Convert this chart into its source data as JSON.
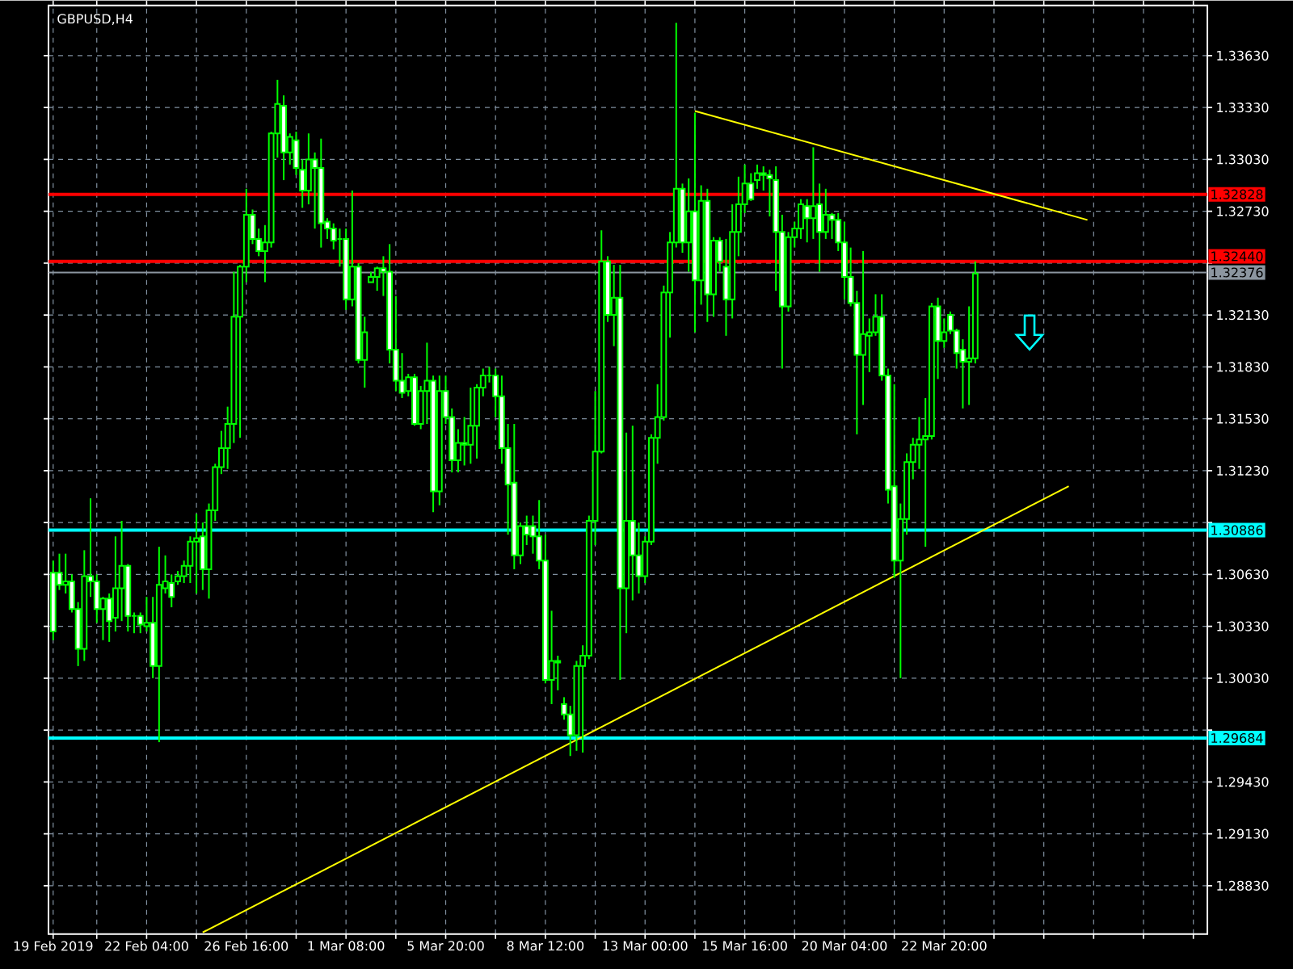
{
  "chart_data": {
    "type": "candlestick",
    "title": "GBPUSD,H4",
    "color": "#00ff00",
    "grid": true,
    "ylim": [
      1.2855,
      1.3392
    ],
    "yticks": [
      {
        "value": 1.3363,
        "label": "1.33630"
      },
      {
        "value": 1.3333,
        "label": "1.33330"
      },
      {
        "value": 1.3303,
        "label": "1.33030"
      },
      {
        "value": 1.3273,
        "label": "1.32730"
      },
      {
        "value": 1.3213,
        "label": "1.32130"
      },
      {
        "value": 1.3183,
        "label": "1.31830"
      },
      {
        "value": 1.3153,
        "label": "1.31530"
      },
      {
        "value": 1.3123,
        "label": "1.31230"
      },
      {
        "value": 1.3063,
        "label": "1.30630"
      },
      {
        "value": 1.3033,
        "label": "1.30330"
      },
      {
        "value": 1.3003,
        "label": "1.30030"
      },
      {
        "value": 1.2943,
        "label": "1.29430"
      },
      {
        "value": 1.2913,
        "label": "1.29130"
      },
      {
        "value": 1.2883,
        "label": "1.28830"
      }
    ],
    "ref_lines": [
      {
        "axis": "y",
        "value": 1.32828,
        "label": "1.32828",
        "color": "#ff0000"
      },
      {
        "axis": "y",
        "value": 1.3244,
        "label": "1.32440",
        "color": "#ff0000"
      },
      {
        "axis": "y",
        "value": 1.32376,
        "label": "1.32376",
        "color": "#8c96a0"
      },
      {
        "axis": "y",
        "value": 1.30886,
        "label": "1.30886",
        "color": "#00ffff"
      },
      {
        "axis": "y",
        "value": 1.29684,
        "label": "1.29684",
        "color": "#00ffff"
      }
    ],
    "series": [
      {
        "type": "line",
        "color": "#ffff00",
        "values": [
          null,
          null,
          null,
          null,
          null,
          null,
          null,
          null,
          null,
          null,
          null,
          null,
          null,
          null,
          null,
          null,
          null,
          null,
          null,
          null,
          null,
          null,
          null,
          null,
          1.2856,
          null,
          null,
          null,
          null,
          null,
          null,
          null,
          null,
          null,
          null,
          null,
          null,
          null,
          null,
          null,
          null,
          null,
          null,
          null,
          null,
          null,
          null,
          null,
          null,
          null,
          null,
          null,
          null,
          null,
          null,
          null,
          null,
          null,
          null,
          null,
          null,
          null,
          null,
          null,
          null,
          null,
          null,
          null,
          null,
          null,
          null,
          null,
          null,
          null,
          null,
          null,
          null,
          null,
          null,
          null,
          null,
          null,
          null,
          null,
          null,
          null,
          null,
          null,
          null,
          null,
          null,
          null,
          null,
          null,
          null,
          null,
          null,
          null,
          null,
          null,
          null,
          null,
          null,
          null,
          null,
          null,
          null,
          null,
          null,
          null,
          null,
          null,
          null,
          null,
          null,
          null,
          null,
          null,
          null,
          null,
          null,
          null,
          null,
          null,
          null,
          null,
          null,
          null,
          null,
          null,
          null,
          null,
          null,
          null,
          null,
          null,
          null,
          null,
          null,
          null,
          null,
          null,
          null,
          null,
          null,
          null,
          null,
          null,
          null,
          null,
          null,
          null,
          null,
          null,
          null,
          null,
          null,
          null,
          null,
          null,
          null,
          null,
          null,
          1.3114,
          null,
          null,
          null,
          null,
          null,
          null,
          null,
          null,
          null,
          null,
          null,
          null,
          null,
          null,
          null,
          null,
          null,
          null,
          null,
          null,
          null,
          null
        ]
      },
      {
        "type": "line",
        "color": "#ffff00",
        "values": [
          null,
          null,
          null,
          null,
          null,
          null,
          null,
          null,
          null,
          null,
          null,
          null,
          null,
          null,
          null,
          null,
          null,
          null,
          null,
          null,
          null,
          null,
          null,
          null,
          null,
          null,
          null,
          null,
          null,
          null,
          null,
          null,
          null,
          null,
          null,
          null,
          null,
          null,
          null,
          null,
          null,
          null,
          null,
          null,
          null,
          null,
          null,
          null,
          null,
          null,
          null,
          null,
          null,
          null,
          null,
          null,
          null,
          null,
          null,
          null,
          null,
          null,
          null,
          null,
          null,
          null,
          null,
          null,
          null,
          null,
          null,
          null,
          null,
          null,
          null,
          null,
          null,
          null,
          null,
          null,
          null,
          null,
          null,
          null,
          null,
          null,
          null,
          null,
          null,
          null,
          null,
          null,
          null,
          null,
          null,
          null,
          null,
          null,
          null,
          null,
          null,
          null,
          null,
          1.3331,
          null,
          null,
          null,
          null,
          null,
          null,
          null,
          null,
          null,
          null,
          null,
          null,
          null,
          null,
          null,
          null,
          null,
          null,
          null,
          null,
          null,
          null,
          null,
          null,
          null,
          null,
          null,
          null,
          null,
          null,
          null,
          null,
          null,
          null,
          null,
          null,
          null,
          null,
          null,
          null,
          null,
          null,
          null,
          null,
          null,
          null,
          null,
          null,
          null,
          null,
          null,
          null,
          null,
          null,
          null,
          null,
          null,
          null,
          null,
          null,
          null,
          null,
          1.3268,
          null,
          null,
          null,
          null,
          null,
          null,
          null,
          null,
          null,
          null,
          null,
          null,
          null,
          null,
          null,
          null,
          null,
          null,
          null
        ]
      }
    ],
    "categories": [
      "19 Feb 2019",
      null,
      null,
      null,
      null,
      null,
      null,
      null,
      null,
      null,
      null,
      null,
      null,
      null,
      null,
      "22 Feb 04:00",
      null,
      null,
      null,
      null,
      null,
      null,
      null,
      null,
      null,
      null,
      null,
      null,
      null,
      null,
      null,
      "26 Feb 16:00",
      null,
      null,
      null,
      null,
      null,
      null,
      null,
      null,
      null,
      null,
      null,
      null,
      null,
      null,
      null,
      "1 Mar 08:00",
      null,
      null,
      null,
      null,
      null,
      null,
      null,
      null,
      null,
      null,
      null,
      null,
      null,
      null,
      null,
      "5 Mar 20:00",
      null,
      null,
      null,
      null,
      null,
      null,
      null,
      null,
      null,
      null,
      null,
      null,
      null,
      null,
      null,
      "8 Mar 12:00",
      null,
      null,
      null,
      null,
      null,
      null,
      null,
      null,
      null,
      null,
      null,
      null,
      null,
      null,
      null,
      "13 Mar 00:00",
      null,
      null,
      null,
      null,
      null,
      null,
      null,
      null,
      null,
      null,
      null,
      null,
      null,
      null,
      null,
      "15 Mar 16:00",
      null,
      null,
      null,
      null,
      null,
      null,
      null,
      null,
      null,
      null,
      null,
      null,
      null,
      null,
      null,
      "20 Mar 04:00",
      null,
      null,
      null,
      null,
      null,
      null,
      null,
      null,
      null,
      null,
      null,
      null,
      null,
      null,
      null,
      "22 Mar 20:00",
      null,
      null,
      null,
      null,
      null,
      null,
      null,
      null,
      null,
      null,
      null,
      null,
      null,
      null,
      null,
      null,
      null,
      null,
      null,
      null,
      null,
      null,
      null,
      null,
      null,
      null,
      null,
      null,
      null,
      null,
      null,
      null,
      null,
      null,
      null,
      null,
      null,
      null,
      null,
      null,
      null,
      null
    ],
    "ohlc": [
      [
        1.3064,
        1.3071,
        1.3025,
        1.303
      ],
      [
        1.3064,
        1.3075,
        1.3054,
        1.3057
      ],
      [
        1.3057,
        1.3075,
        1.3052,
        1.3059
      ],
      [
        1.3059,
        1.3063,
        1.3041,
        1.3043
      ],
      [
        1.3043,
        1.3047,
        1.301,
        1.302
      ],
      [
        1.302,
        1.3077,
        1.3013,
        1.3062
      ],
      [
        1.3062,
        1.3107,
        1.305,
        1.3059
      ],
      [
        1.3059,
        1.3063,
        1.3035,
        1.3043
      ],
      [
        1.3043,
        1.305,
        1.3025,
        1.3049
      ],
      [
        1.3049,
        1.3052,
        1.3024,
        1.3036
      ],
      [
        1.3038,
        1.3085,
        1.303,
        1.3055
      ],
      [
        1.3055,
        1.3094,
        1.3036,
        1.3068
      ],
      [
        1.3068,
        1.3069,
        1.303,
        1.3039
      ],
      [
        1.3039,
        1.3041,
        1.3029,
        1.3039
      ],
      [
        1.3039,
        1.3041,
        1.3029,
        1.3034
      ],
      [
        1.3033,
        1.305,
        1.303,
        1.3035
      ],
      [
        1.3035,
        1.305,
        1.3003,
        1.301
      ],
      [
        1.301,
        1.3079,
        1.2966,
        1.3057
      ],
      [
        1.3055,
        1.3074,
        1.3052,
        1.3059
      ],
      [
        1.3058,
        1.3063,
        1.3044,
        1.305
      ],
      [
        1.3059,
        1.3065,
        1.3057,
        1.3062
      ],
      [
        1.3062,
        1.3071,
        1.3058,
        1.3068
      ],
      [
        1.3068,
        1.3085,
        1.3058,
        1.3082
      ],
      [
        1.3082,
        1.3098,
        1.3052,
        1.3084
      ],
      [
        1.3085,
        1.3093,
        1.3054,
        1.3066
      ],
      [
        1.3066,
        1.3104,
        1.3049,
        1.31
      ],
      [
        1.31,
        1.3127,
        1.3094,
        1.3125
      ],
      [
        1.3125,
        1.3146,
        1.3121,
        1.3136
      ],
      [
        1.3136,
        1.316,
        1.3124,
        1.315
      ],
      [
        1.315,
        1.3238,
        1.3139,
        1.3212
      ],
      [
        1.3212,
        1.3242,
        1.3142,
        1.3241
      ],
      [
        1.3241,
        1.3286,
        1.3232,
        1.3271
      ],
      [
        1.3271,
        1.3274,
        1.3254,
        1.3257
      ],
      [
        1.3257,
        1.3263,
        1.3247,
        1.325
      ],
      [
        1.325,
        1.3265,
        1.3232,
        1.3255
      ],
      [
        1.3255,
        1.3319,
        1.3252,
        1.3318
      ],
      [
        1.3318,
        1.3349,
        1.3304,
        1.3335
      ],
      [
        1.3334,
        1.334,
        1.3291,
        1.3307
      ],
      [
        1.3307,
        1.3318,
        1.33,
        1.3316
      ],
      [
        1.3314,
        1.3319,
        1.3294,
        1.3298
      ],
      [
        1.3297,
        1.3303,
        1.3275,
        1.3285
      ],
      [
        1.3285,
        1.3318,
        1.3277,
        1.3303
      ],
      [
        1.3303,
        1.3307,
        1.3263,
        1.3298
      ],
      [
        1.3298,
        1.3315,
        1.3252,
        1.3266
      ],
      [
        1.3267,
        1.3269,
        1.3257,
        1.3263
      ],
      [
        1.3263,
        1.3266,
        1.3251,
        1.3256
      ],
      [
        1.3257,
        1.3263,
        1.3241,
        1.3257
      ],
      [
        1.3257,
        1.3263,
        1.3216,
        1.3222
      ],
      [
        1.3222,
        1.3285,
        1.3218,
        1.3241
      ],
      [
        1.3241,
        1.3243,
        1.3185,
        1.3187
      ],
      [
        1.3187,
        1.3212,
        1.3171,
        1.3203
      ],
      [
        1.3232,
        1.3238,
        1.3232,
        1.3235
      ],
      [
        1.3235,
        1.3241,
        1.3227,
        1.324
      ],
      [
        1.324,
        1.3247,
        1.3224,
        1.3238
      ],
      [
        1.3238,
        1.3254,
        1.3185,
        1.3193
      ],
      [
        1.3193,
        1.3224,
        1.3169,
        1.3175
      ],
      [
        1.3175,
        1.3191,
        1.3165,
        1.3168
      ],
      [
        1.3169,
        1.3179,
        1.3166,
        1.3177
      ],
      [
        1.3177,
        1.3179,
        1.3149,
        1.315
      ],
      [
        1.315,
        1.3172,
        1.3147,
        1.3169
      ],
      [
        1.3169,
        1.3197,
        1.315,
        1.3175
      ],
      [
        1.3175,
        1.3178,
        1.3099,
        1.3111
      ],
      [
        1.3111,
        1.3178,
        1.3103,
        1.3169
      ],
      [
        1.3169,
        1.3178,
        1.315,
        1.3154
      ],
      [
        1.3154,
        1.3159,
        1.3122,
        1.3129
      ],
      [
        1.3129,
        1.3147,
        1.3122,
        1.3139
      ],
      [
        1.3139,
        1.3154,
        1.3126,
        1.3138
      ],
      [
        1.3138,
        1.3171,
        1.3127,
        1.3149
      ],
      [
        1.3149,
        1.3173,
        1.313,
        1.3171
      ],
      [
        1.3171,
        1.3182,
        1.3166,
        1.3178
      ],
      [
        1.3178,
        1.3183,
        1.3174,
        1.3178
      ],
      [
        1.3178,
        1.3182,
        1.3154,
        1.3166
      ],
      [
        1.3166,
        1.3178,
        1.3127,
        1.3136
      ],
      [
        1.3136,
        1.315,
        1.3086,
        1.3115
      ],
      [
        1.3116,
        1.315,
        1.3066,
        1.3074
      ],
      [
        1.3074,
        1.3093,
        1.3069,
        1.3091
      ],
      [
        1.3091,
        1.3097,
        1.308,
        1.3086
      ],
      [
        1.3091,
        1.3097,
        1.3075,
        1.3085
      ],
      [
        1.3085,
        1.3106,
        1.3066,
        1.3071
      ],
      [
        1.3071,
        1.3086,
        1.3,
        1.3002
      ],
      [
        1.3002,
        1.3042,
        1.2988,
        1.3013
      ],
      [
        1.3013,
        1.3016,
        1.2996,
        1.3012
      ],
      [
        1.2988,
        1.2992,
        1.2979,
        1.2982
      ],
      [
        1.2982,
        1.2987,
        1.2958,
        1.297
      ],
      [
        1.297,
        1.3013,
        1.2961,
        1.301
      ],
      [
        1.301,
        1.3022,
        1.296,
        1.3016
      ],
      [
        1.3016,
        1.3097,
        1.3014,
        1.3094
      ],
      [
        1.3094,
        1.3169,
        1.308,
        1.3134
      ],
      [
        1.3134,
        1.3262,
        1.3133,
        1.3244
      ],
      [
        1.3244,
        1.3247,
        1.3209,
        1.3213
      ],
      [
        1.3213,
        1.3242,
        1.3195,
        1.3223
      ],
      [
        1.3223,
        1.3242,
        1.3002,
        1.3055
      ],
      [
        1.3055,
        1.3145,
        1.3029,
        1.3094
      ],
      [
        1.3094,
        1.3149,
        1.3048,
        1.3074
      ],
      [
        1.3074,
        1.3093,
        1.3052,
        1.3062
      ],
      [
        1.3062,
        1.3085,
        1.3058,
        1.3082
      ],
      [
        1.3082,
        1.3144,
        1.308,
        1.3142
      ],
      [
        1.3142,
        1.3173,
        1.3127,
        1.3154
      ],
      [
        1.3154,
        1.323,
        1.3152,
        1.3226
      ],
      [
        1.3226,
        1.3261,
        1.32,
        1.3255
      ],
      [
        1.3255,
        1.3382,
        1.3252,
        1.3286
      ],
      [
        1.3286,
        1.3289,
        1.3249,
        1.3255
      ],
      [
        1.3255,
        1.3292,
        1.3238,
        1.3273
      ],
      [
        1.3273,
        1.333,
        1.3203,
        1.3233
      ],
      [
        1.3233,
        1.3288,
        1.3219,
        1.3279
      ],
      [
        1.3279,
        1.3286,
        1.3209,
        1.3225
      ],
      [
        1.3225,
        1.3258,
        1.3212,
        1.3256
      ],
      [
        1.3256,
        1.3258,
        1.3238,
        1.3244
      ],
      [
        1.3241,
        1.3257,
        1.3201,
        1.3222
      ],
      [
        1.3222,
        1.3277,
        1.3211,
        1.3261
      ],
      [
        1.3261,
        1.3293,
        1.3247,
        1.3277
      ],
      [
        1.3277,
        1.33,
        1.3272,
        1.3289
      ],
      [
        1.3289,
        1.3295,
        1.3279,
        1.328
      ],
      [
        1.3291,
        1.33,
        1.3286,
        1.3295
      ],
      [
        1.3295,
        1.3299,
        1.3285,
        1.3294
      ],
      [
        1.3294,
        1.3297,
        1.327,
        1.3292
      ],
      [
        1.3291,
        1.3299,
        1.3227,
        1.3261
      ],
      [
        1.3261,
        1.3271,
        1.3182,
        1.3218
      ],
      [
        1.3218,
        1.3261,
        1.3215,
        1.3258
      ],
      [
        1.3258,
        1.3267,
        1.3252,
        1.3263
      ],
      [
        1.3263,
        1.328,
        1.3257,
        1.3277
      ],
      [
        1.3276,
        1.328,
        1.3255,
        1.3269
      ],
      [
        1.3269,
        1.331,
        1.3257,
        1.3276
      ],
      [
        1.3277,
        1.3289,
        1.3238,
        1.3261
      ],
      [
        1.3261,
        1.3286,
        1.3257,
        1.3271
      ],
      [
        1.3271,
        1.3272,
        1.3257,
        1.3268
      ],
      [
        1.3268,
        1.3272,
        1.325,
        1.3255
      ],
      [
        1.3255,
        1.3267,
        1.3222,
        1.3235
      ],
      [
        1.3235,
        1.3252,
        1.3218,
        1.322
      ],
      [
        1.322,
        1.3227,
        1.3144,
        1.319
      ],
      [
        1.319,
        1.325,
        1.3161,
        1.3202
      ],
      [
        1.3201,
        1.3211,
        1.318,
        1.3203
      ],
      [
        1.3203,
        1.3225,
        1.3201,
        1.3212
      ],
      [
        1.3212,
        1.3225,
        1.3175,
        1.3178
      ],
      [
        1.3178,
        1.3182,
        1.3104,
        1.3112
      ],
      [
        1.3114,
        1.3173,
        1.3061,
        1.3071
      ],
      [
        1.3071,
        1.3104,
        1.3003,
        1.3095
      ],
      [
        1.3095,
        1.3133,
        1.3086,
        1.3128
      ],
      [
        1.3128,
        1.3142,
        1.3118,
        1.3138
      ],
      [
        1.3138,
        1.3154,
        1.3124,
        1.3141
      ],
      [
        1.3141,
        1.3165,
        1.3079,
        1.3143
      ],
      [
        1.3143,
        1.322,
        1.3141,
        1.3218
      ],
      [
        1.3218,
        1.3223,
        1.3176,
        1.3198
      ],
      [
        1.3198,
        1.3211,
        1.3194,
        1.3203
      ],
      [
        1.3213,
        1.3215,
        1.3202,
        1.3204
      ],
      [
        1.3204,
        1.3205,
        1.3182,
        1.3191
      ],
      [
        1.3193,
        1.3199,
        1.3159,
        1.3186
      ],
      [
        1.3186,
        1.3218,
        1.3161,
        1.3188
      ],
      [
        1.3188,
        1.3244,
        1.3185,
        1.3237
      ],
      null,
      null,
      null,
      null,
      null,
      null,
      null,
      null,
      null,
      null,
      null,
      null,
      null,
      null,
      null,
      null,
      null,
      null,
      null,
      null,
      null,
      null,
      null,
      null,
      null,
      null,
      null,
      null,
      null,
      null,
      null,
      null,
      null,
      null,
      null,
      null,
      null
    ]
  }
}
